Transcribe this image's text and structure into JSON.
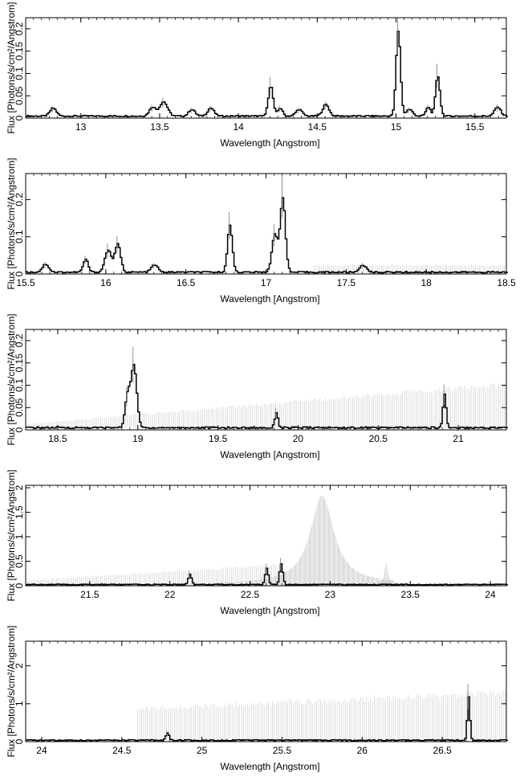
{
  "chart_data": [
    {
      "type": "line",
      "xlabel": "Wavelength [Angstrom]",
      "ylabel": "Flux [Photons/s/cm²/Angstrom]",
      "xlim": [
        12.65,
        15.7
      ],
      "ylim": [
        0,
        0.225
      ],
      "xticks": [
        "13",
        "13.5",
        "14",
        "14.5",
        "15",
        "15.5"
      ],
      "yticks": [
        "0",
        "0.05",
        "0.1",
        "0.15",
        "0.2"
      ],
      "background": {
        "level": 0.004,
        "error": 0.003
      },
      "lines": [
        {
          "x": 12.82,
          "y": 0.018,
          "w": 0.02
        },
        {
          "x": 13.45,
          "y": 0.02,
          "w": 0.02
        },
        {
          "x": 13.52,
          "y": 0.032,
          "w": 0.025
        },
        {
          "x": 13.7,
          "y": 0.015,
          "w": 0.02
        },
        {
          "x": 13.82,
          "y": 0.018,
          "w": 0.02
        },
        {
          "x": 14.2,
          "y": 0.068,
          "w": 0.015
        },
        {
          "x": 14.26,
          "y": 0.018,
          "w": 0.015
        },
        {
          "x": 14.38,
          "y": 0.015,
          "w": 0.02
        },
        {
          "x": 14.55,
          "y": 0.026,
          "w": 0.02
        },
        {
          "x": 15.01,
          "y": 0.19,
          "w": 0.014
        },
        {
          "x": 15.08,
          "y": 0.015,
          "w": 0.02
        },
        {
          "x": 15.26,
          "y": 0.09,
          "w": 0.014
        },
        {
          "x": 15.2,
          "y": 0.02,
          "w": 0.015
        },
        {
          "x": 15.64,
          "y": 0.02,
          "w": 0.02
        }
      ],
      "bands": []
    },
    {
      "type": "line",
      "xlabel": "Wavelength [Angstrom]",
      "ylabel": "Flux [Photons/s/cm²/Angstrom]",
      "xlim": [
        15.5,
        18.5
      ],
      "ylim": [
        0,
        0.27
      ],
      "xticks": [
        "15.5",
        "16",
        "16.5",
        "17",
        "17.5",
        "18",
        "18.5"
      ],
      "yticks": [
        "0",
        "0.1",
        "0.2"
      ],
      "background": {
        "level": 0.004,
        "error": 0.004
      },
      "lines": [
        {
          "x": 15.62,
          "y": 0.022,
          "w": 0.02
        },
        {
          "x": 15.87,
          "y": 0.035,
          "w": 0.015
        },
        {
          "x": 16.01,
          "y": 0.06,
          "w": 0.02
        },
        {
          "x": 16.07,
          "y": 0.075,
          "w": 0.018
        },
        {
          "x": 16.3,
          "y": 0.02,
          "w": 0.02
        },
        {
          "x": 16.77,
          "y": 0.125,
          "w": 0.015
        },
        {
          "x": 17.05,
          "y": 0.1,
          "w": 0.018
        },
        {
          "x": 17.1,
          "y": 0.2,
          "w": 0.016
        },
        {
          "x": 17.6,
          "y": 0.02,
          "w": 0.02
        }
      ],
      "bands": [
        {
          "x1": 17.3,
          "x2": 18.5,
          "lo": 0.003,
          "hi": 0.022
        }
      ]
    },
    {
      "type": "line",
      "xlabel": "Wavelength [Angstrom]",
      "ylabel": "Flux [Photons/s/cm²/Angstrom]",
      "xlim": [
        18.3,
        21.3
      ],
      "ylim": [
        0,
        0.225
      ],
      "xticks": [
        "18.5",
        "19",
        "19.5",
        "20",
        "20.5",
        "21"
      ],
      "yticks": [
        "0",
        "0.05",
        "0.1",
        "0.15",
        "0.2"
      ],
      "background": {
        "level": 0.004,
        "error": 0.004
      },
      "lines": [
        {
          "x": 18.97,
          "y": 0.14,
          "w": 0.018
        },
        {
          "x": 18.93,
          "y": 0.07,
          "w": 0.015
        },
        {
          "x": 19.86,
          "y": 0.035,
          "w": 0.01
        },
        {
          "x": 20.91,
          "y": 0.075,
          "w": 0.01
        }
      ],
      "bands": [
        {
          "x1": 18.3,
          "x2": 21.3,
          "lo": 0.005,
          "hi": 0.012,
          "lo2": 0.015,
          "hi2": 0.095
        }
      ]
    },
    {
      "type": "line",
      "xlabel": "Wavelength [Angstrom]",
      "ylabel": "Flux [Photons/s/cm²/Angstrom]",
      "xlim": [
        21.1,
        24.1
      ],
      "ylim": [
        0,
        2.05
      ],
      "xticks": [
        "21.5",
        "22",
        "22.5",
        "23",
        "23.5",
        "24"
      ],
      "yticks": [
        "0",
        "0.5",
        "1",
        "1.5",
        "2"
      ],
      "background": {
        "level": 0.02,
        "error": 0.02
      },
      "lines": [
        {
          "x": 22.12,
          "y": 0.22,
          "w": 0.01
        },
        {
          "x": 22.6,
          "y": 0.33,
          "w": 0.01
        },
        {
          "x": 22.69,
          "y": 0.42,
          "w": 0.01
        }
      ],
      "bands": [
        {
          "x1": 21.1,
          "x2": 22.7,
          "lo": 0.0,
          "hi": 0.1,
          "hi2": 0.4
        },
        {
          "peak": 22.95,
          "amp": 1.8,
          "x1": 22.3,
          "x2": 23.4
        },
        {
          "peak": 23.35,
          "amp": 0.45,
          "x1": 23.3,
          "x2": 23.4
        }
      ]
    },
    {
      "type": "line",
      "xlabel": "Wavelength [Angstrom]",
      "ylabel": "Flux [Photons/s/cm²/Angstrom]",
      "xlim": [
        23.9,
        26.9
      ],
      "ylim": [
        0,
        2.65
      ],
      "xticks": [
        "24",
        "24.5",
        "25",
        "25.5",
        "26",
        "26.5"
      ],
      "yticks": [
        "0",
        "1",
        "2"
      ],
      "background": {
        "level": 0.03,
        "error": 0.03
      },
      "lines": [
        {
          "x": 24.78,
          "y": 0.2,
          "w": 0.01
        },
        {
          "x": 26.66,
          "y": 1.15,
          "w": 0.008
        }
      ],
      "bands": [
        {
          "x1": 24.6,
          "x2": 26.9,
          "lo": 0.05,
          "hi": 0.8,
          "hi2": 1.2
        }
      ]
    }
  ]
}
